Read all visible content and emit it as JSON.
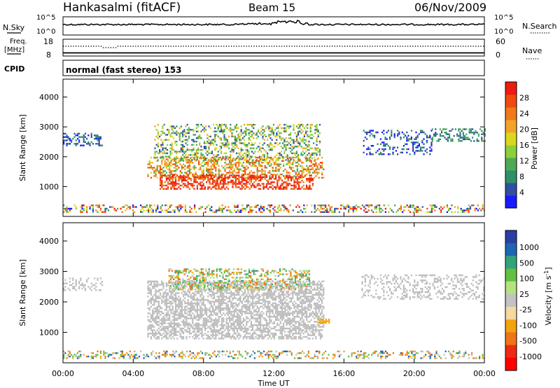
{
  "header": {
    "station": "Hankasalmi (fitACF)",
    "beam": "Beam 15",
    "date": "06/Nov/2009"
  },
  "strips": {
    "nsky_label": "N.Sky",
    "nsearch_label": "N.Search",
    "nsky_ticks": [
      "10^5",
      "10^0"
    ],
    "nsearch_ticks": [
      "10^5",
      "10^0"
    ],
    "freq_label_1": "Freq.",
    "freq_label_2": "[MHz]",
    "freq_ticks": [
      "18",
      "8"
    ],
    "nave_label": "Nave",
    "nave_ticks": [
      "60",
      "0"
    ],
    "cpid_label": "CPID",
    "cpid_text": "normal (fast stereo) 153"
  },
  "colors": {
    "power_scale": [
      "#1a1aff",
      "#2f4fa0",
      "#2f8f6a",
      "#4faa55",
      "#8bd039",
      "#d8d81f",
      "#f2a428",
      "#f07a18",
      "#f04a10",
      "#ee1c10"
    ],
    "velocity_scale": [
      "#2a3ea6",
      "#1d66b0",
      "#33a37a",
      "#62c043",
      "#b5e27e",
      "#c2c2c2",
      "#f4d9a0",
      "#f2a30f",
      "#ef7518",
      "#ee2b12",
      "#ff0000"
    ],
    "ground_scatter": "#bdbdbd"
  },
  "chart_data": [
    {
      "type": "heatmap",
      "title": "Power",
      "xlabel": "Time UT",
      "ylabel": "Slant Range [km]",
      "xlim": [
        0,
        24
      ],
      "ylim": [
        0,
        4600
      ],
      "x_ticks": [
        "00:00",
        "04:00",
        "08:00",
        "12:00",
        "16:00",
        "20:00",
        "00:00"
      ],
      "y_ticks": [
        "1000",
        "2000",
        "3000",
        "4000"
      ],
      "colorbar": {
        "label": "Power [dB]",
        "range": [
          0,
          32
        ],
        "ticks": [
          "4",
          "8",
          "12",
          "16",
          "20",
          "24",
          "28"
        ]
      },
      "regions": [
        {
          "name": "near-range clutter",
          "t": [
            0,
            24
          ],
          "r": [
            150,
            400
          ],
          "value_db": "mixed"
        },
        {
          "name": "early echoes",
          "t": [
            0,
            2.2
          ],
          "r": [
            2400,
            2800
          ],
          "value_db": 6
        },
        {
          "name": "main F-region band",
          "t": [
            4.8,
            14.8
          ],
          "r": [
            800,
            3100
          ],
          "value_db": 20
        },
        {
          "name": "strongest echoes",
          "t": [
            5.5,
            14
          ],
          "r": [
            900,
            1800
          ],
          "value_db": 28
        },
        {
          "name": "evening echoes",
          "t": [
            17,
            21
          ],
          "r": [
            2100,
            2900
          ],
          "value_db": 6
        },
        {
          "name": "late echoes",
          "t": [
            21,
            24
          ],
          "r": [
            2500,
            2950
          ],
          "value_db": 8
        }
      ]
    },
    {
      "type": "heatmap",
      "title": "Velocity",
      "xlabel": "Time UT",
      "ylabel": "Slant Range [km]",
      "xlim": [
        0,
        24
      ],
      "ylim": [
        0,
        4600
      ],
      "x_ticks": [
        "00:00",
        "04:00",
        "08:00",
        "12:00",
        "16:00",
        "20:00",
        "00:00"
      ],
      "y_ticks": [
        "1000",
        "2000",
        "3000",
        "4000"
      ],
      "colorbar": {
        "label": "Velocity [m s^-1]",
        "ticks": [
          "1000",
          "500",
          "100",
          "25",
          "-25",
          "-100",
          "-500",
          "-1000"
        ]
      },
      "regions": [
        {
          "name": "ground scatter",
          "t": [
            4.8,
            14.8
          ],
          "r": [
            800,
            2700
          ],
          "velocity": 0
        },
        {
          "name": "upper band",
          "t": [
            6,
            14
          ],
          "r": [
            2400,
            3100
          ],
          "velocity": 200
        },
        {
          "name": "eastward blob",
          "t": [
            14.5,
            15.2
          ],
          "r": [
            1300,
            1450
          ],
          "velocity": -150
        },
        {
          "name": "evening ground scatter",
          "t": [
            17,
            24
          ],
          "r": [
            2100,
            2900
          ],
          "velocity": 0
        }
      ]
    }
  ]
}
